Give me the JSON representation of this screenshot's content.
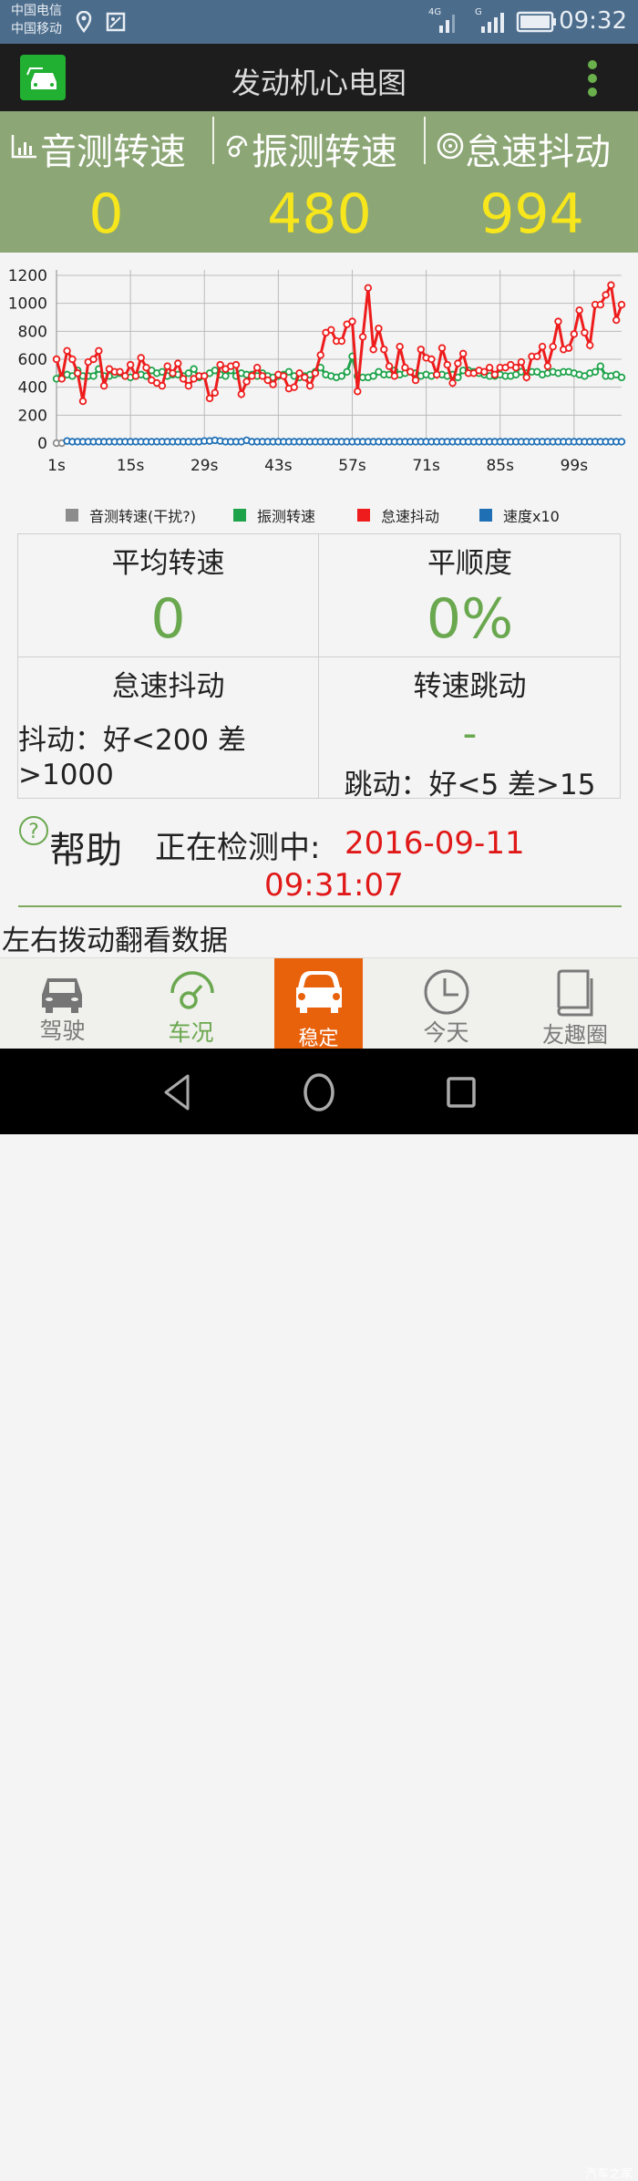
{
  "status_bar": {
    "carrier1": "中国电信",
    "carrier2": "中国移动",
    "net1": "4G",
    "net2": "G",
    "time": "09:32"
  },
  "app_bar": {
    "title": "发动机心电图"
  },
  "panel": {
    "items": [
      {
        "label": "音测转速",
        "value": "0",
        "icon": "bar-chart-icon"
      },
      {
        "label": "振测转速",
        "value": "480",
        "icon": "gauge-icon"
      },
      {
        "label": "怠速抖动",
        "value": "994",
        "icon": "wheel-icon"
      }
    ]
  },
  "chart_data": {
    "type": "line",
    "xlabel": "",
    "ylabel": "",
    "ylim": [
      0,
      1200
    ],
    "yticks": [
      "0",
      "200",
      "400",
      "600",
      "800",
      "1000",
      "1200"
    ],
    "xtick_labels": [
      "1s",
      "15s",
      "29s",
      "43s",
      "57s",
      "71s",
      "85s",
      "99s"
    ],
    "xtick_values": [
      1,
      15,
      29,
      43,
      57,
      71,
      85,
      99
    ],
    "xlim": [
      1,
      108
    ],
    "grid": true,
    "legend": "bottom",
    "series": [
      {
        "name": "音测转速(干扰?)",
        "color": "#8c8c8c",
        "start": 1,
        "values": [
          0,
          0
        ]
      },
      {
        "name": "振测转速",
        "color": "#1ea34a",
        "start": 1,
        "values": [
          460,
          480,
          490,
          480,
          520,
          480,
          480,
          480,
          530,
          480,
          480,
          490,
          500,
          480,
          470,
          480,
          490,
          480,
          520,
          500,
          510,
          480,
          490,
          490,
          480,
          500,
          530,
          470,
          480,
          500,
          520,
          490,
          480,
          520,
          480,
          500,
          490,
          490,
          480,
          500,
          480,
          470,
          480,
          490,
          510,
          480,
          470,
          480,
          490,
          510,
          540,
          490,
          480,
          470,
          480,
          510,
          620,
          480,
          470,
          470,
          480,
          510,
          490,
          490,
          520,
          490,
          500,
          510,
          500,
          480,
          490,
          480,
          490,
          490,
          480,
          490,
          470,
          520,
          520,
          510,
          500,
          490,
          480,
          480,
          490,
          480,
          480,
          490,
          510,
          500,
          510,
          510,
          490,
          500,
          510,
          500,
          510,
          510,
          500,
          490,
          480,
          500,
          510,
          550,
          480,
          480,
          490,
          470
        ]
      },
      {
        "name": "怠速抖动",
        "color": "#ee1c1c",
        "start": 1,
        "values": [
          600,
          460,
          660,
          600,
          500,
          300,
          580,
          600,
          660,
          410,
          530,
          510,
          510,
          480,
          560,
          480,
          610,
          540,
          450,
          430,
          410,
          550,
          500,
          570,
          460,
          410,
          460,
          480,
          480,
          320,
          360,
          560,
          530,
          550,
          560,
          350,
          440,
          480,
          540,
          480,
          450,
          420,
          490,
          480,
          390,
          400,
          500,
          470,
          410,
          500,
          630,
          790,
          810,
          730,
          730,
          850,
          870,
          370,
          760,
          1110,
          670,
          820,
          670,
          550,
          480,
          690,
          540,
          510,
          450,
          670,
          610,
          600,
          490,
          680,
          560,
          430,
          570,
          640,
          500,
          500,
          520,
          510,
          540,
          490,
          540,
          540,
          560,
          540,
          580,
          470,
          620,
          620,
          690,
          550,
          690,
          870,
          670,
          680,
          780,
          950,
          790,
          700,
          990,
          990,
          1060,
          1130,
          880,
          990
        ]
      },
      {
        "name": "速度x10",
        "color": "#1f6fb5",
        "start": 3,
        "values": [
          15,
          10,
          10,
          10,
          10,
          10,
          10,
          10,
          10,
          10,
          10,
          10,
          10,
          10,
          10,
          10,
          10,
          10,
          10,
          10,
          10,
          10,
          10,
          10,
          10,
          10,
          15,
          15,
          20,
          15,
          10,
          10,
          10,
          10,
          20,
          10,
          10,
          10,
          10,
          10,
          10,
          10,
          10,
          10,
          10,
          10,
          10,
          10,
          10,
          10,
          10,
          10,
          10,
          10,
          10,
          10,
          10,
          10,
          10,
          10,
          10,
          10,
          10,
          10,
          10,
          10,
          10,
          10,
          10,
          10,
          10,
          10,
          10,
          10,
          10,
          10,
          10,
          10,
          10,
          10,
          10,
          10,
          10,
          10,
          10,
          10,
          10,
          10,
          10,
          10,
          10,
          10,
          10,
          10,
          10,
          10,
          10,
          10,
          10,
          10,
          10,
          10,
          10,
          10,
          10,
          10
        ]
      }
    ]
  },
  "stats": {
    "avg_label": "平均转速",
    "avg_value": "0",
    "smooth_label": "平顺度",
    "smooth_value": "0%",
    "jitter_label": "怠速抖动",
    "jitter_desc": "抖动：好<200 差>1000",
    "jump_label": "转速跳动",
    "jump_value": "-",
    "jump_desc": "跳动：好<5 差>15"
  },
  "help": {
    "label": "帮助",
    "status": "正在检测中:",
    "datetime": "2016-09-11 09:31:07"
  },
  "hint": "左右拨动翻看数据",
  "nav": {
    "tabs": [
      {
        "label": "驾驶"
      },
      {
        "label": "车况"
      },
      {
        "label": "稳定",
        "active": true
      },
      {
        "label": "今天"
      },
      {
        "label": "友趣圈"
      }
    ],
    "active_color": "#e8620c"
  },
  "watermark": "汽车之家"
}
